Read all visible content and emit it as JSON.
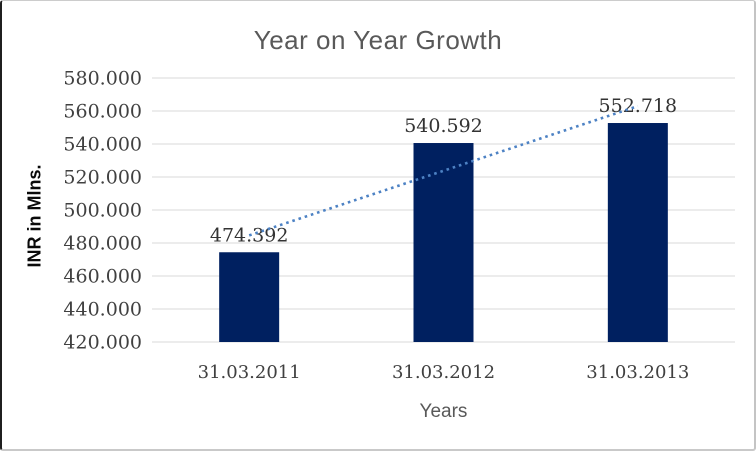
{
  "chart_data": {
    "type": "bar",
    "title": "Year on Year Growth",
    "xlabel": "Years",
    "ylabel": "INR in Mlns.",
    "categories": [
      "31.03.2011",
      "31.03.2012",
      "31.03.2013"
    ],
    "values": [
      474.392,
      540.592,
      552.718
    ],
    "data_labels": [
      "474.392",
      "540.592",
      "552.718"
    ],
    "ylim": [
      420,
      580
    ],
    "ytick_step": 20,
    "ytick_labels": [
      "420.000",
      "440.000",
      "460.000",
      "480.000",
      "500.000",
      "520.000",
      "540.000",
      "560.000",
      "580.000"
    ],
    "grid": true,
    "legend": false,
    "trendline": {
      "type": "linear",
      "style": "dotted"
    },
    "colors": {
      "bar": "#002060",
      "trendline": "#4d82c4",
      "gridline": "#d9d9d9",
      "title": "#595959",
      "tick_label": "#404040",
      "data_label": "#333333",
      "axis_title": "#595959"
    }
  }
}
